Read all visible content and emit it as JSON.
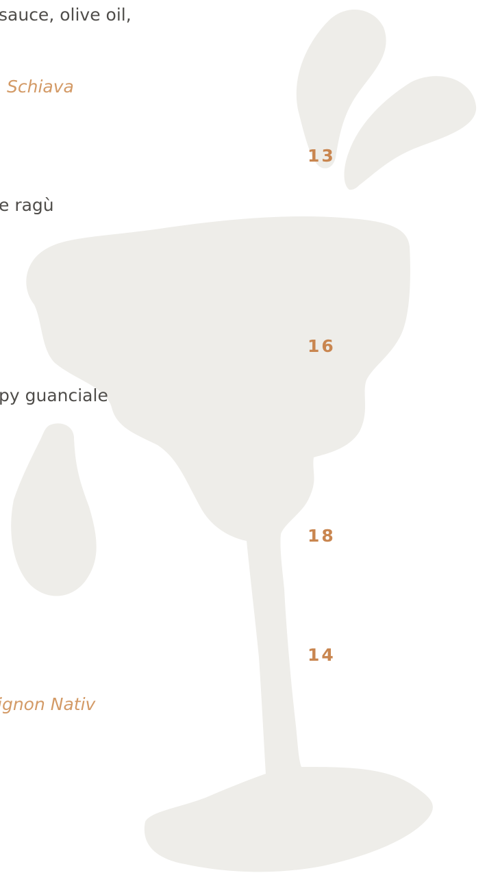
{
  "menu": {
    "items": [
      {
        "description": "sauce, olive oil,",
        "wine": "Schiava",
        "price": 13
      },
      {
        "description": "e ragù",
        "price": 16
      },
      {
        "description": "py guanciale",
        "price": 18
      },
      {
        "price": 14,
        "wine": "ignon Nativ"
      }
    ]
  }
}
